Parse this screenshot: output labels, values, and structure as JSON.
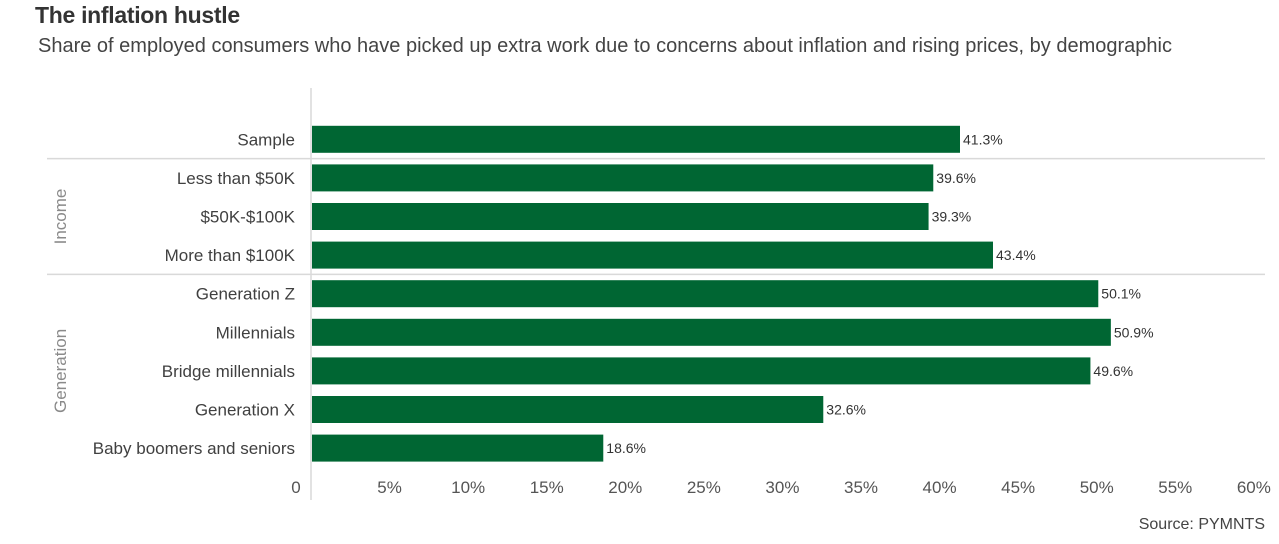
{
  "chart_data": {
    "type": "bar",
    "orientation": "horizontal",
    "title": "The inflation hustle",
    "subtitle": "Share of employed consumers who have picked up extra work due to concerns about inflation and rising prices, by demographic",
    "source": "Source: PYMNTS",
    "xlabel": "",
    "ylabel": "",
    "xlim": [
      0,
      60
    ],
    "x_ticks": [
      "0",
      "5%",
      "10%",
      "15%",
      "20%",
      "25%",
      "30%",
      "35%",
      "40%",
      "45%",
      "50%",
      "55%",
      "60%"
    ],
    "x_tick_values": [
      0,
      5,
      10,
      15,
      20,
      25,
      30,
      35,
      40,
      45,
      50,
      55,
      60
    ],
    "grid": false,
    "bar_color": "#006633",
    "groups": [
      {
        "name": "",
        "categories": [
          "Sample"
        ]
      },
      {
        "name": "Income",
        "categories": [
          "Less than $50K",
          "$50K-$100K",
          "More than $100K"
        ]
      },
      {
        "name": "Generation",
        "categories": [
          "Generation Z",
          "Millennials",
          "Bridge millennials",
          "Generation X",
          "Baby boomers and seniors"
        ]
      }
    ],
    "categories": [
      "Sample",
      "Less than $50K",
      "$50K-$100K",
      "More than $100K",
      "Generation Z",
      "Millennials",
      "Bridge millennials",
      "Generation X",
      "Baby boomers and seniors"
    ],
    "values": [
      41.3,
      39.6,
      39.3,
      43.4,
      50.1,
      50.9,
      49.6,
      32.6,
      18.6
    ],
    "data_labels": [
      "41.3%",
      "39.6%",
      "39.3%",
      "43.4%",
      "50.1%",
      "50.9%",
      "49.6%",
      "32.6%",
      "18.6%"
    ]
  }
}
